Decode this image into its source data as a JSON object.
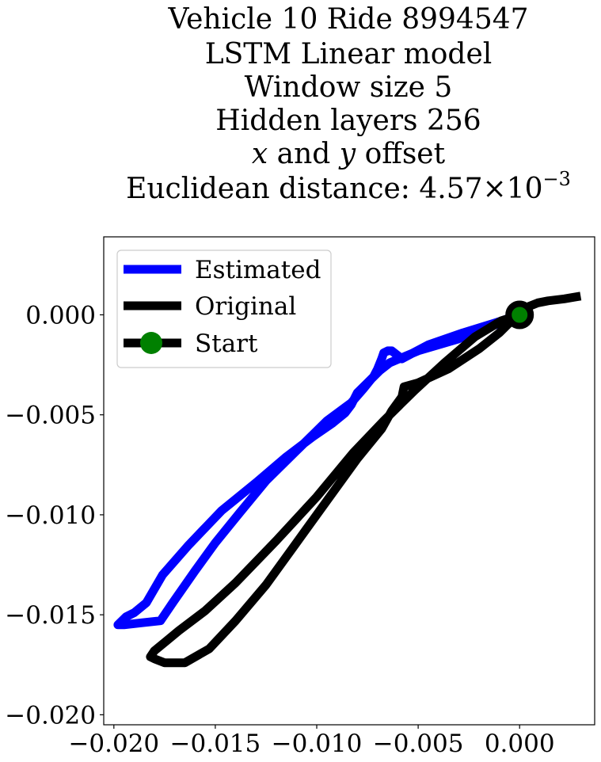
{
  "chart_data": {
    "type": "line",
    "title_lines": [
      "Vehicle 10 Ride 8994547",
      "LSTM Linear model",
      "Window size 5",
      "Hidden layers 256"
    ],
    "title_offset_line": {
      "x_var": "x",
      "middle": " and ",
      "y_var": "y",
      "suffix": " offset"
    },
    "title_distance_line": {
      "prefix": "Euclidean distance: ",
      "mantissa": "4.57",
      "times": "×",
      "base": "10",
      "exponent": "−3"
    },
    "xlim": [
      -0.0205,
      0.0037
    ],
    "ylim": [
      -0.0205,
      0.0039
    ],
    "x_ticks": [
      {
        "value": -0.02,
        "label": "−0.020"
      },
      {
        "value": -0.015,
        "label": "−0.015"
      },
      {
        "value": -0.01,
        "label": "−0.010"
      },
      {
        "value": -0.005,
        "label": "−0.005"
      },
      {
        "value": 0.0,
        "label": "0.000"
      }
    ],
    "y_ticks": [
      {
        "value": 0.0,
        "label": "0.000"
      },
      {
        "value": -0.005,
        "label": "−0.005"
      },
      {
        "value": -0.01,
        "label": "−0.010"
      },
      {
        "value": -0.015,
        "label": "−0.015"
      },
      {
        "value": -0.02,
        "label": "−0.020"
      }
    ],
    "grid": false,
    "legend_position": "upper-left",
    "legend": [
      {
        "label": "Estimated",
        "kind": "line",
        "color": "#0000ff"
      },
      {
        "label": "Original",
        "kind": "line",
        "color": "#000000"
      },
      {
        "label": "Start",
        "kind": "marker",
        "color": "#000000",
        "marker_fill": "#008000"
      }
    ],
    "series": [
      {
        "color": "#0000ff",
        "x": [
          0.0,
          -0.0012,
          -0.0028,
          -0.0045,
          -0.0058,
          -0.0063,
          -0.0065,
          -0.0067,
          -0.0068,
          -0.007,
          -0.0072,
          -0.0076,
          -0.008,
          -0.0083,
          -0.0086,
          -0.0092,
          -0.0102,
          -0.0115,
          -0.013,
          -0.0147,
          -0.0163,
          -0.0176,
          -0.0184,
          -0.019,
          -0.0194,
          -0.0198,
          -0.0195,
          -0.0186,
          -0.0177,
          -0.0171,
          -0.016,
          -0.015,
          -0.0138,
          -0.0125,
          -0.011,
          -0.0095,
          -0.0083,
          -0.0077,
          -0.0073,
          -0.0069,
          -0.0064,
          -0.005,
          -0.003,
          -0.0012,
          0.0
        ],
        "y": [
          0.0,
          -0.0004,
          -0.0009,
          -0.0015,
          -0.0022,
          -0.0018,
          -0.0018,
          -0.0019,
          -0.0022,
          -0.0027,
          -0.0031,
          -0.0035,
          -0.0039,
          -0.0045,
          -0.0049,
          -0.0054,
          -0.0061,
          -0.0071,
          -0.0084,
          -0.0098,
          -0.0115,
          -0.013,
          -0.0144,
          -0.0149,
          -0.0151,
          -0.0155,
          -0.0155,
          -0.0154,
          -0.0153,
          -0.0144,
          -0.0128,
          -0.0114,
          -0.0099,
          -0.0083,
          -0.0068,
          -0.0053,
          -0.0044,
          -0.0037,
          -0.0032,
          -0.0028,
          -0.0024,
          -0.0018,
          -0.0012,
          -0.0005,
          0.0
        ]
      },
      {
        "color": "#000000",
        "x": [
          0.0028,
          0.0022,
          0.0014,
          0.0009,
          0.0004,
          0.0001,
          0.0,
          -0.0003,
          -0.001,
          -0.002,
          -0.0035,
          -0.005,
          -0.0057,
          -0.0058,
          -0.0063,
          -0.0068,
          -0.008,
          -0.0095,
          -0.011,
          -0.0125,
          -0.014,
          -0.0153,
          -0.0165,
          -0.0175,
          -0.018,
          -0.0182,
          -0.018,
          -0.0174,
          -0.0168,
          -0.0155,
          -0.014,
          -0.012,
          -0.01,
          -0.0082,
          -0.0067,
          -0.0052,
          -0.0037,
          -0.0022,
          -0.0009,
          0.0
        ],
        "y": [
          0.0009,
          0.0008,
          0.0007,
          0.0006,
          0.0004,
          0.0002,
          0.0,
          -0.0002,
          -0.0009,
          -0.0017,
          -0.0027,
          -0.0034,
          -0.0036,
          -0.0041,
          -0.0048,
          -0.0057,
          -0.0072,
          -0.0093,
          -0.0114,
          -0.0135,
          -0.0153,
          -0.0167,
          -0.0174,
          -0.0174,
          -0.0172,
          -0.0171,
          -0.0168,
          -0.0163,
          -0.0158,
          -0.0148,
          -0.0134,
          -0.0113,
          -0.0091,
          -0.0069,
          -0.0053,
          -0.0038,
          -0.0024,
          -0.0011,
          -0.0003,
          0.0
        ]
      }
    ],
    "start_point": {
      "x": 0.0,
      "y": 0.0
    }
  }
}
